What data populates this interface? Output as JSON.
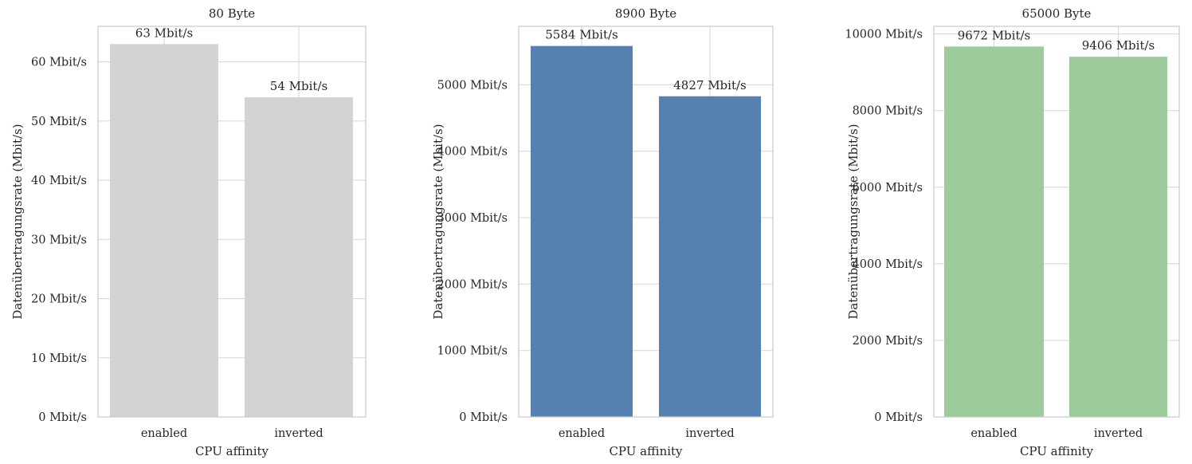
{
  "chart_data": [
    {
      "type": "bar",
      "title": "80 Byte",
      "xlabel": "CPU affinity",
      "ylabel": "Datenübertragungsrate (Mbit/s)",
      "categories": [
        "enabled",
        "inverted"
      ],
      "values": [
        63,
        54
      ],
      "data_labels": [
        "63 Mbit/s",
        "54 Mbit/s"
      ],
      "ylim": [
        0,
        66
      ],
      "yticks": [
        0,
        10,
        20,
        30,
        40,
        50,
        60
      ],
      "ytick_labels": [
        "0 Mbit/s",
        "10 Mbit/s",
        "20 Mbit/s",
        "30 Mbit/s",
        "40 Mbit/s",
        "50 Mbit/s",
        "60 Mbit/s"
      ],
      "bar_color": "#d3d3d3",
      "grid": true
    },
    {
      "type": "bar",
      "title": "8900 Byte",
      "xlabel": "CPU affinity",
      "ylabel": "Datenübertragungsrate (Mbit/s)",
      "categories": [
        "enabled",
        "inverted"
      ],
      "values": [
        5584,
        4827
      ],
      "data_labels": [
        "5584 Mbit/s",
        "4827 Mbit/s"
      ],
      "ylim": [
        0,
        5880
      ],
      "yticks": [
        0,
        1000,
        2000,
        3000,
        4000,
        5000
      ],
      "ytick_labels": [
        "0 Mbit/s",
        "1000 Mbit/s",
        "2000 Mbit/s",
        "3000 Mbit/s",
        "4000 Mbit/s",
        "5000 Mbit/s"
      ],
      "bar_color": "#5580b0",
      "grid": true
    },
    {
      "type": "bar",
      "title": "65000 Byte",
      "xlabel": "CPU affinity",
      "ylabel": "Datenübertragungsrate (Mbit/s)",
      "categories": [
        "enabled",
        "inverted"
      ],
      "values": [
        9672,
        9406
      ],
      "data_labels": [
        "9672 Mbit/s",
        "9406 Mbit/s"
      ],
      "ylim": [
        0,
        10200
      ],
      "yticks": [
        0,
        2000,
        4000,
        6000,
        8000,
        10000
      ],
      "ytick_labels": [
        "0 Mbit/s",
        "2000 Mbit/s",
        "4000 Mbit/s",
        "6000 Mbit/s",
        "8000 Mbit/s",
        "10000 Mbit/s"
      ],
      "bar_color": "#9ecb9b",
      "grid": true
    }
  ]
}
